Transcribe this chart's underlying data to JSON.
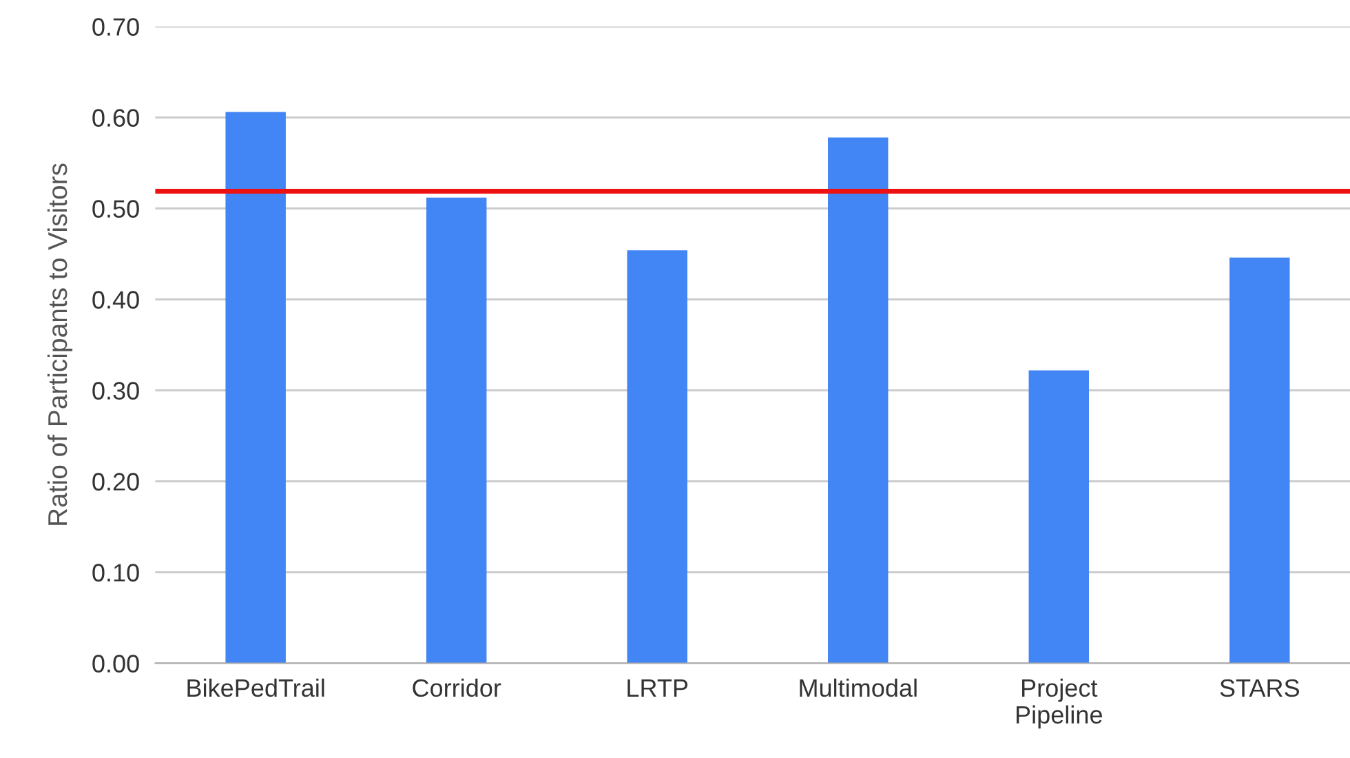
{
  "chart_data": {
    "type": "bar",
    "ylabel": "Ratio of Participants to Visitors",
    "categories": [
      "BikePedTrail",
      "Corridor",
      "LRTP",
      "Multimodal",
      "Project Pipeline",
      "STARS"
    ],
    "values": [
      0.606,
      0.512,
      0.454,
      0.578,
      0.322,
      0.446
    ],
    "color": "#4285f4",
    "ylim": [
      0,
      0.7
    ],
    "yticks": [
      {
        "value": 0,
        "label": "0.00"
      },
      {
        "value": 0.1,
        "label": "0.10"
      },
      {
        "value": 0.2,
        "label": "0.20"
      },
      {
        "value": 0.3,
        "label": "0.30"
      },
      {
        "value": 0.4,
        "label": "0.40"
      },
      {
        "value": 0.5,
        "label": "0.50"
      },
      {
        "value": 0.6,
        "label": "0.60"
      },
      {
        "value": 0.7,
        "label": "0.70"
      }
    ],
    "grid": "y",
    "ref_lines": [
      {
        "axis": "y",
        "value": 0.519,
        "color": "#ee1111"
      }
    ]
  }
}
